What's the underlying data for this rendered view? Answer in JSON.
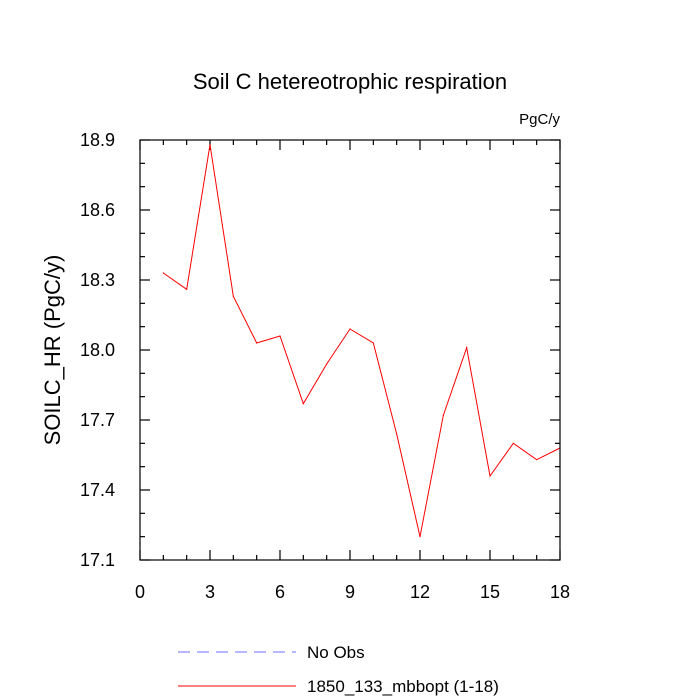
{
  "chart_data": {
    "type": "line",
    "title": "Soil C hetereotrophic respiration",
    "units_label": "PgC/y",
    "xlabel": "",
    "ylabel": "SOILC_HR  (PgC/y)",
    "xlim": [
      0,
      18
    ],
    "ylim": [
      17.1,
      18.9
    ],
    "xticks": [
      0,
      3,
      6,
      9,
      12,
      15,
      18
    ],
    "yticks": [
      17.1,
      17.4,
      17.7,
      18.0,
      18.3,
      18.6,
      18.9
    ],
    "xtick_labels": [
      "0",
      "3",
      "6",
      "9",
      "12",
      "15",
      "18"
    ],
    "ytick_labels": [
      "17.1",
      "17.4",
      "17.7",
      "18.0",
      "18.3",
      "18.6",
      "18.9"
    ],
    "x_minor_step": 1,
    "y_minor_step": 0.1,
    "grid": false,
    "legend_position": "bottom",
    "series": [
      {
        "name": "1850_133_mbbopt (1-18)",
        "color": "#ff0000",
        "dash": "solid",
        "x": [
          1,
          2,
          3,
          4,
          5,
          6,
          7,
          8,
          9,
          10,
          11,
          12,
          13,
          14,
          15,
          16,
          17,
          18
        ],
        "values": [
          18.33,
          18.26,
          18.88,
          18.23,
          18.03,
          18.06,
          17.77,
          17.94,
          18.09,
          18.03,
          17.64,
          17.2,
          17.72,
          18.01,
          17.46,
          17.6,
          17.53,
          17.58
        ]
      }
    ],
    "legend": [
      {
        "label": "No Obs",
        "color": "#6f6fff",
        "dash": "dashed"
      },
      {
        "label": "1850_133_mbbopt (1-18)",
        "color": "#ff0000",
        "dash": "solid"
      }
    ]
  }
}
